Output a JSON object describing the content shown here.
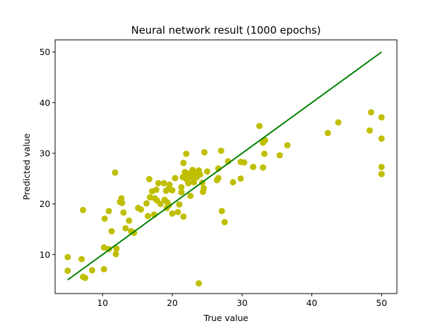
{
  "chart_data": {
    "type": "scatter",
    "title": "Neural network result (1000 epochs)",
    "xlabel": "True value",
    "ylabel": "Predicted value",
    "xlim": [
      3.2,
      52.2
    ],
    "ylim": [
      2.3,
      52.4
    ],
    "xticks": [
      10,
      20,
      30,
      40,
      50
    ],
    "yticks": [
      10,
      20,
      30,
      40,
      50
    ],
    "grid": false,
    "scatter_color": "#bfbf00",
    "line_color": "#008000",
    "points": [
      [
        5,
        9.5
      ],
      [
        5,
        6.8
      ],
      [
        7,
        9.1
      ],
      [
        7.2,
        18.8
      ],
      [
        7.2,
        5.6
      ],
      [
        7.5,
        5.4
      ],
      [
        8.5,
        6.9
      ],
      [
        10.2,
        7.1
      ],
      [
        10.2,
        11.4
      ],
      [
        10.3,
        17.1
      ],
      [
        10.9,
        18.6
      ],
      [
        10.9,
        11.1
      ],
      [
        11.3,
        14.6
      ],
      [
        11.8,
        26.2
      ],
      [
        11.9,
        10.1
      ],
      [
        12,
        11.2
      ],
      [
        12.5,
        20.4
      ],
      [
        12.7,
        21.1
      ],
      [
        12.8,
        20.2
      ],
      [
        13,
        18.3
      ],
      [
        13.3,
        15.2
      ],
      [
        13.8,
        16.7
      ],
      [
        14.1,
        14.6
      ],
      [
        14.5,
        14.3
      ],
      [
        15.1,
        19.2
      ],
      [
        15.5,
        18.9
      ],
      [
        16.3,
        20.1
      ],
      [
        16.5,
        17.6
      ],
      [
        16.7,
        24.9
      ],
      [
        16.8,
        21.3
      ],
      [
        17.1,
        22.5
      ],
      [
        17.4,
        17.9
      ],
      [
        17.5,
        21.1
      ],
      [
        17.7,
        22.8
      ],
      [
        17.8,
        20.7
      ],
      [
        18,
        24.1
      ],
      [
        18.3,
        20
      ],
      [
        18.8,
        24.1
      ],
      [
        18.9,
        20.8
      ],
      [
        19.1,
        22.6
      ],
      [
        19.2,
        19.2
      ],
      [
        19.3,
        20.3
      ],
      [
        19.4,
        22.9
      ],
      [
        19.5,
        19.7
      ],
      [
        19.6,
        23.8
      ],
      [
        20,
        18.1
      ],
      [
        20,
        22.7
      ],
      [
        20.4,
        25.1
      ],
      [
        20.8,
        18.4
      ],
      [
        21,
        19.9
      ],
      [
        21.3,
        23.3
      ],
      [
        21.3,
        22.3
      ],
      [
        21.5,
        25.3
      ],
      [
        21.6,
        28.1
      ],
      [
        21.6,
        17.5
      ],
      [
        21.8,
        26.3
      ],
      [
        22,
        29.9
      ],
      [
        22,
        24.9
      ],
      [
        22.1,
        25.9
      ],
      [
        22.3,
        24.1
      ],
      [
        22.5,
        26
      ],
      [
        22.6,
        21.6
      ],
      [
        22.8,
        25.2
      ],
      [
        22.9,
        26.7
      ],
      [
        23.1,
        24.3
      ],
      [
        23.3,
        26.2
      ],
      [
        23.5,
        25.3
      ],
      [
        23.8,
        4.3
      ],
      [
        23.8,
        26.6
      ],
      [
        24,
        25.8
      ],
      [
        24.3,
        24.2
      ],
      [
        24.4,
        22.4
      ],
      [
        24.5,
        23.1
      ],
      [
        24.6,
        30.2
      ],
      [
        25,
        26.4
      ],
      [
        26.4,
        24.7
      ],
      [
        26.6,
        25.1
      ],
      [
        26.6,
        27
      ],
      [
        27,
        30.5
      ],
      [
        27.1,
        18.6
      ],
      [
        27.5,
        16.4
      ],
      [
        28,
        28.4
      ],
      [
        28.7,
        24.3
      ],
      [
        29.8,
        25
      ],
      [
        29.8,
        28.3
      ],
      [
        30.3,
        28.2
      ],
      [
        31.6,
        27.3
      ],
      [
        32.5,
        35.4
      ],
      [
        33,
        27.2
      ],
      [
        33,
        32.1
      ],
      [
        33.2,
        29.9
      ],
      [
        33.3,
        32.6
      ],
      [
        35.4,
        29.6
      ],
      [
        36.5,
        31.6
      ],
      [
        42.3,
        34
      ],
      [
        43.8,
        36.1
      ],
      [
        48.3,
        34.5
      ],
      [
        48.5,
        38.1
      ],
      [
        50,
        37.1
      ],
      [
        50,
        32.9
      ],
      [
        50,
        27.3
      ],
      [
        50,
        25.9
      ]
    ],
    "line": {
      "x": [
        5,
        50
      ],
      "y": [
        5,
        50
      ]
    }
  }
}
